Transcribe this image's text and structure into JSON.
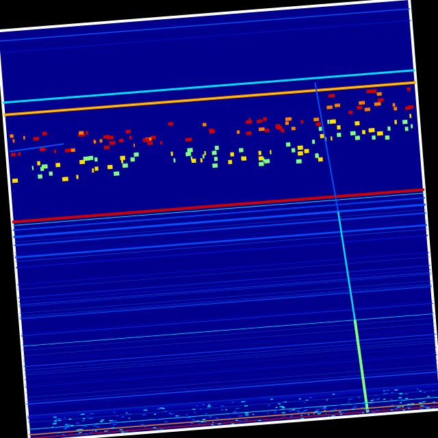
{
  "colors": {
    "background": "#000000",
    "border": "#ffffff",
    "field": "#00008c",
    "faint": "#0010d0",
    "blue": "#0050ff",
    "cyan": "#00e0ff",
    "green": "#80ff80",
    "yellow": "#ffe000",
    "orange": "#ff8000",
    "red": "#d00000"
  },
  "image": {
    "kind": "spectrogram",
    "colormap": "jet",
    "rotation_deg": -4.5
  }
}
